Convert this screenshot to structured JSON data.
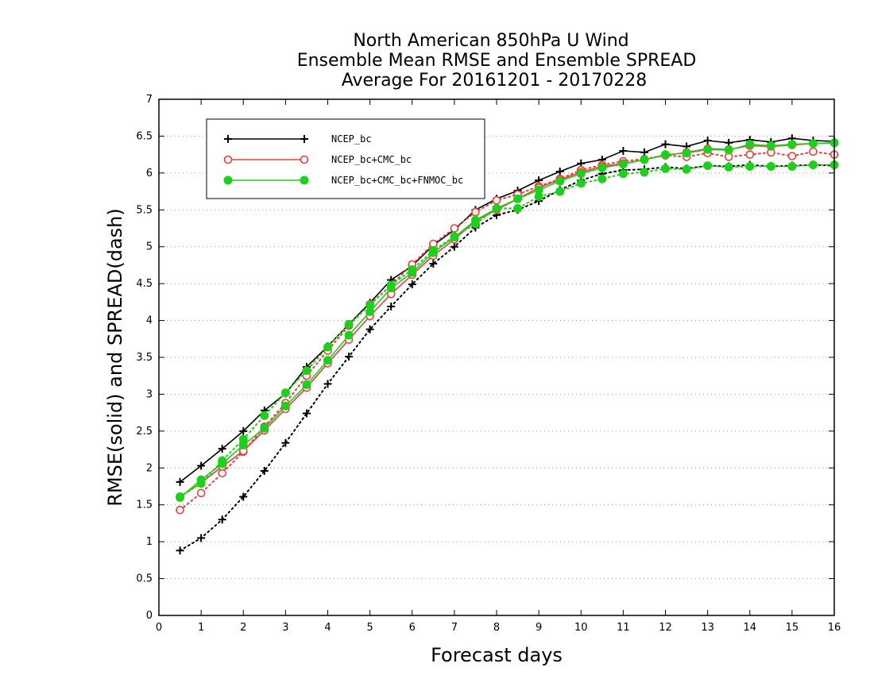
{
  "chart_data": {
    "type": "line",
    "title_lines": [
      "North American 850hPa U Wind",
      "Ensemble Mean RMSE and Ensemble SPREAD",
      "Average For 20161201 - 20170228"
    ],
    "xlabel": "Forecast days",
    "ylabel": "RMSE(solid) and SPREAD(dash)",
    "xlim": [
      0,
      16
    ],
    "ylim": [
      0,
      7
    ],
    "xticks": [
      "0",
      "1",
      "2",
      "3",
      "4",
      "5",
      "6",
      "7",
      "8",
      "9",
      "10",
      "11",
      "12",
      "13",
      "14",
      "15",
      "16"
    ],
    "yticks": [
      "0",
      "0.5",
      "1",
      "1.5",
      "2",
      "2.5",
      "3",
      "3.5",
      "4",
      "4.5",
      "5",
      "5.5",
      "6",
      "6.5",
      "7"
    ],
    "grid": "horizontal dotted",
    "legend_position": "top-left",
    "x": [
      0.5,
      1,
      1.5,
      2,
      2.5,
      3,
      3.5,
      4,
      4.5,
      5,
      5.5,
      6,
      6.5,
      7,
      7.5,
      8,
      8.5,
      9,
      9.5,
      10,
      10.5,
      11,
      11.5,
      12,
      12.5,
      13,
      13.5,
      14,
      14.5,
      15,
      15.5,
      16
    ],
    "series": [
      {
        "name": "NCEP_bc",
        "color": "#000000",
        "marker": "plus",
        "rmse": [
          1.81,
          2.03,
          2.26,
          2.5,
          2.78,
          3.01,
          3.37,
          3.65,
          3.95,
          4.24,
          4.55,
          4.74,
          5.02,
          5.23,
          5.5,
          5.65,
          5.76,
          5.9,
          6.02,
          6.13,
          6.18,
          6.3,
          6.28,
          6.39,
          6.36,
          6.44,
          6.41,
          6.45,
          6.42,
          6.47,
          6.44,
          6.43
        ],
        "spread": [
          0.88,
          1.05,
          1.3,
          1.61,
          1.96,
          2.34,
          2.74,
          3.14,
          3.51,
          3.88,
          4.19,
          4.49,
          4.77,
          5.0,
          5.26,
          5.43,
          5.5,
          5.62,
          5.77,
          5.9,
          5.99,
          6.04,
          6.05,
          6.08,
          6.06,
          6.1,
          6.09,
          6.11,
          6.09,
          6.1,
          6.11,
          6.1
        ]
      },
      {
        "name": "NCEP_bc+CMC_bc",
        "color": "#e8403a",
        "marker": "open-circle",
        "rmse": [
          1.61,
          1.8,
          2.02,
          2.23,
          2.51,
          2.8,
          3.09,
          3.42,
          3.74,
          4.06,
          4.36,
          4.62,
          4.88,
          5.1,
          5.35,
          5.5,
          5.65,
          5.8,
          5.91,
          6.01,
          6.09,
          6.13,
          6.18,
          6.24,
          6.28,
          6.33,
          6.32,
          6.37,
          6.36,
          6.38,
          6.4,
          6.41
        ],
        "spread": [
          1.43,
          1.66,
          1.93,
          2.22,
          2.56,
          2.88,
          3.25,
          3.59,
          3.93,
          4.22,
          4.48,
          4.76,
          5.04,
          5.25,
          5.47,
          5.63,
          5.71,
          5.82,
          5.92,
          6.04,
          6.11,
          6.16,
          6.19,
          6.24,
          6.22,
          6.27,
          6.22,
          6.25,
          6.28,
          6.23,
          6.29,
          6.25
        ]
      },
      {
        "name": "NCEP_bc+CMC_bc+FNMOC_bc",
        "color": "#1ecf1e",
        "marker": "filled-circle",
        "rmse": [
          1.6,
          1.84,
          2.06,
          2.31,
          2.54,
          2.84,
          3.13,
          3.46,
          3.8,
          4.12,
          4.44,
          4.65,
          4.92,
          5.13,
          5.36,
          5.52,
          5.65,
          5.77,
          5.89,
          5.99,
          6.07,
          6.12,
          6.18,
          6.25,
          6.27,
          6.32,
          6.31,
          6.39,
          6.37,
          6.39,
          6.4,
          6.41
        ],
        "spread": [
          1.61,
          1.79,
          2.1,
          2.39,
          2.71,
          3.02,
          3.32,
          3.64,
          3.95,
          4.21,
          4.48,
          4.69,
          4.95,
          5.14,
          5.31,
          5.52,
          5.52,
          5.68,
          5.75,
          5.86,
          5.92,
          5.99,
          6.01,
          6.06,
          6.05,
          6.1,
          6.08,
          6.09,
          6.09,
          6.09,
          6.11,
          6.11
        ]
      }
    ]
  }
}
